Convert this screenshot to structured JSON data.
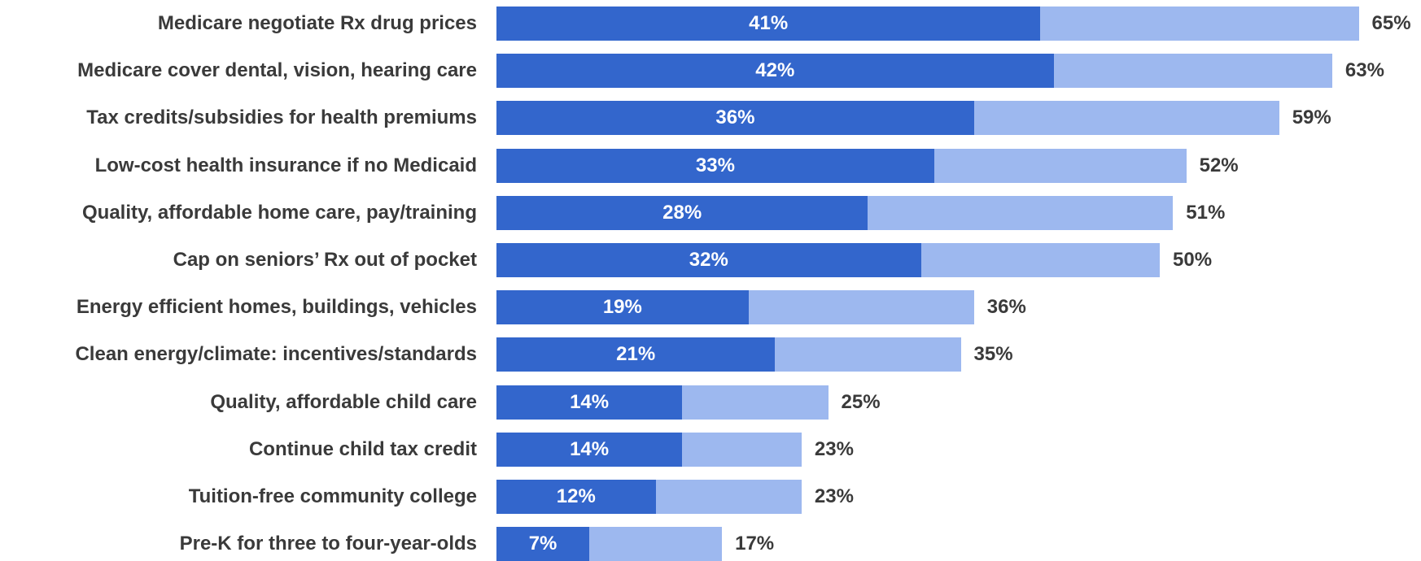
{
  "colors": {
    "strong": "#3366cc",
    "total": "#9db8ef"
  },
  "chart_data": {
    "type": "bar",
    "orientation": "horizontal",
    "stacked": "overlay",
    "categories": [
      "Medicare negotiate Rx drug prices",
      "Medicare cover dental, vision, hearing care",
      "Tax credits/subsidies for health premiums",
      "Low-cost health insurance if no Medicaid",
      "Quality, affordable home care, pay/training",
      "Cap on seniors’ Rx out of pocket",
      "Energy efficient homes, buildings, vehicles",
      "Clean energy/climate: incentives/standards",
      "Quality, affordable child care",
      "Continue child tax credit",
      "Tuition-free community college",
      "Pre-K for three to four-year-olds"
    ],
    "series": [
      {
        "values": [
          41,
          42,
          36,
          33,
          28,
          32,
          19,
          21,
          14,
          14,
          12,
          7
        ],
        "labels": [
          "41%",
          "42%",
          "36%",
          "33%",
          "28%",
          "32%",
          "19%",
          "21%",
          "14%",
          "14%",
          "12%",
          "7%"
        ]
      },
      {
        "values": [
          65,
          63,
          59,
          52,
          51,
          50,
          36,
          35,
          25,
          23,
          23,
          17
        ],
        "labels": [
          "65%",
          "63%",
          "59%",
          "52%",
          "51%",
          "50%",
          "36%",
          "35%",
          "25%",
          "23%",
          "23%",
          "17%"
        ]
      }
    ],
    "xlim": [
      0,
      65
    ],
    "grid": false,
    "legend": "none"
  }
}
